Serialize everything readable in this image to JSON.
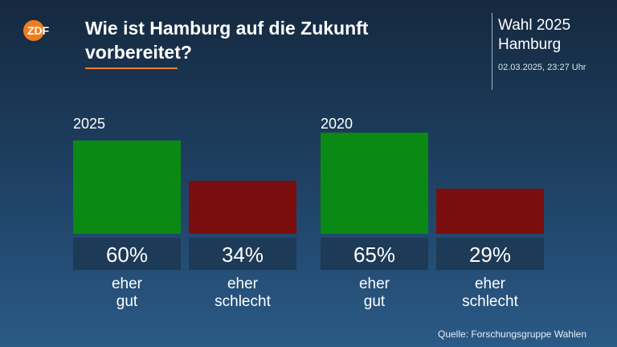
{
  "header": {
    "logo_text": "ZDF",
    "title": "Wie ist Hamburg auf die Zukunft vorbereitet?",
    "context_line1": "Wahl 2025",
    "context_line2": "Hamburg",
    "timestamp": "02.03.2025, 23:27 Uhr"
  },
  "colors": {
    "positive": "#0a8a14",
    "negative": "#7a0e0e",
    "label_box": "#1d3a57",
    "accent": "#f07d1e"
  },
  "chart_data": {
    "type": "bar",
    "title": "Wie ist Hamburg auf die Zukunft vorbereitet?",
    "ylim": [
      0,
      100
    ],
    "grid": false,
    "groups": [
      {
        "name": "2025",
        "bars": [
          {
            "category": "eher gut",
            "value": 60,
            "label": "60%"
          },
          {
            "category": "eher schlecht",
            "value": 34,
            "label": "34%"
          }
        ]
      },
      {
        "name": "2020",
        "bars": [
          {
            "category": "eher gut",
            "value": 65,
            "label": "65%"
          },
          {
            "category": "eher schlecht",
            "value": 29,
            "label": "29%"
          }
        ]
      }
    ],
    "category_labels": [
      [
        "eher",
        "gut"
      ],
      [
        "eher",
        "schlecht"
      ]
    ]
  },
  "footer": {
    "source": "Quelle: Forschungsgruppe Wahlen"
  }
}
